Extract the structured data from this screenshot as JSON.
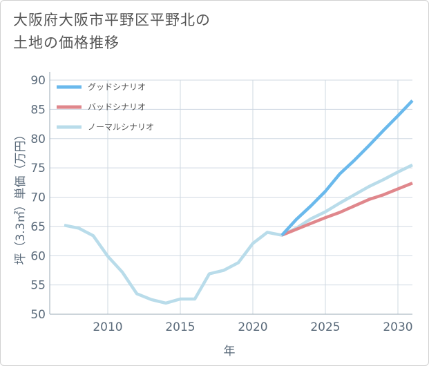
{
  "title_line1": "大阪府大阪市平野区平野北の",
  "title_line2": "土地の価格推移",
  "chart_data": {
    "type": "line",
    "xlabel": "年",
    "ylabel": "坪（3.3㎡）単価（万円）",
    "xlim": [
      2006,
      2031
    ],
    "ylim": [
      50,
      90
    ],
    "x_ticks": [
      2010,
      2015,
      2020,
      2025,
      2030
    ],
    "y_ticks": [
      50,
      55,
      60,
      65,
      70,
      75,
      80,
      85,
      90
    ],
    "grid": true,
    "legend_position": "top-left",
    "series": [
      {
        "name": "グッドシナリオ",
        "color": "#6ab9ec",
        "x": [
          2022,
          2023,
          2024,
          2025,
          2026,
          2027,
          2028,
          2029,
          2030,
          2031
        ],
        "values": [
          63.5,
          66.2,
          68.5,
          71.0,
          74.0,
          76.3,
          78.8,
          81.4,
          83.9,
          86.5
        ]
      },
      {
        "name": "バッドシナリオ",
        "color": "#e0878c",
        "x": [
          2022,
          2023,
          2024,
          2025,
          2026,
          2027,
          2028,
          2029,
          2030,
          2031
        ],
        "values": [
          63.5,
          64.5,
          65.5,
          66.5,
          67.4,
          68.5,
          69.6,
          70.4,
          71.4,
          72.4
        ]
      },
      {
        "name": "ノーマルシナリオ",
        "color": "#b9dcea",
        "x": [
          2007,
          2008,
          2009,
          2010,
          2011,
          2012,
          2013,
          2014,
          2015,
          2016,
          2017,
          2018,
          2019,
          2020,
          2021,
          2022,
          2023,
          2024,
          2025,
          2026,
          2027,
          2028,
          2029,
          2030,
          2031
        ],
        "values": [
          65.2,
          64.7,
          63.4,
          59.9,
          57.2,
          53.5,
          52.5,
          51.9,
          52.6,
          52.6,
          56.9,
          57.5,
          58.8,
          62.1,
          64.0,
          63.5,
          64.7,
          66.3,
          67.5,
          69.0,
          70.4,
          71.8,
          73.0,
          74.3,
          75.5
        ]
      }
    ]
  }
}
